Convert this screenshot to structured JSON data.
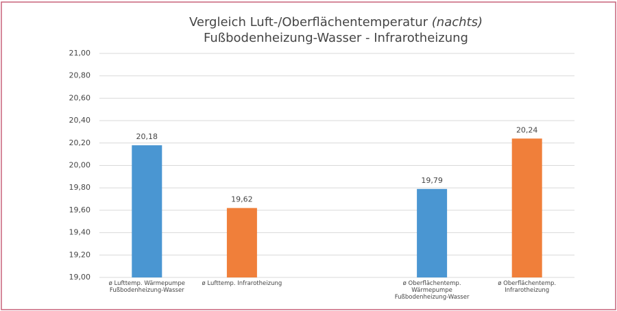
{
  "chart_data": {
    "type": "bar",
    "title": "Vergleich Luft-/Oberflächentemperatur",
    "title_note": "(nachts)",
    "subtitle": "Fußbodenheizung-Wasser - Infrarotheizung",
    "categories": [
      "ø Lufttemp. Wärmepumpe\nFußbodenheizung-Wasser",
      "ø Lufttemp. Infrarotheizung",
      null,
      "ø Oberflächentemp.\nWärmepumpe\nFußbodenheizung-Wasser",
      "ø Oberflächentemp.\nInfrarotheizung"
    ],
    "values": [
      20.18,
      19.62,
      null,
      19.79,
      20.24
    ],
    "value_labels": [
      "20,18",
      "19,62",
      null,
      "19,79",
      "20,24"
    ],
    "colors": [
      "#4a96d2",
      "#f07f3a",
      null,
      "#4a96d2",
      "#f07f3a"
    ],
    "ylim": [
      19,
      21
    ],
    "yticks": [
      {
        "value": 19,
        "label": "19,00"
      },
      {
        "value": 19.2,
        "label": "19,20"
      },
      {
        "value": 19.4,
        "label": "19,40"
      },
      {
        "value": 19.6,
        "label": "19,60"
      },
      {
        "value": 19.8,
        "label": "19,80"
      },
      {
        "value": 20,
        "label": "20,00"
      },
      {
        "value": 20.2,
        "label": "20,20"
      },
      {
        "value": 20.4,
        "label": "20,40"
      },
      {
        "value": 20.6,
        "label": "20,60"
      },
      {
        "value": 20.8,
        "label": "20,80"
      },
      {
        "value": 21,
        "label": "21,00"
      }
    ],
    "grid": true
  }
}
